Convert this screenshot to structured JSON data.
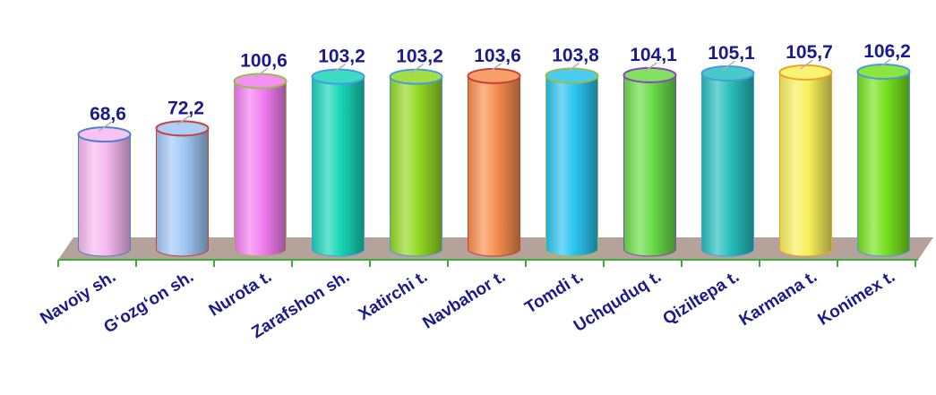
{
  "chart_data": {
    "type": "bar",
    "style": "3d-cylinder",
    "categories": [
      "Navoiy sh.",
      "G‘ozg‘on sh.",
      "Nurota t.",
      "Zarafshon sh.",
      "Xatirchi t.",
      "Navbahor t.",
      "Tomdi t.",
      "Uchquduq t.",
      "Qiziltepa t.",
      "Karmana t.",
      "Konimex t."
    ],
    "values": [
      68.6,
      72.2,
      100.6,
      103.2,
      103.2,
      103.6,
      103.8,
      104.1,
      105.1,
      105.7,
      106.2
    ],
    "value_labels": [
      "68,6",
      "72,2",
      "100,6",
      "103,2",
      "103,2",
      "103,6",
      "103,8",
      "104,1",
      "105,1",
      "105,7",
      "106,2"
    ],
    "title": "",
    "xlabel": "",
    "ylabel": "",
    "ylim": [
      0,
      110
    ],
    "grid": false,
    "legend": "none",
    "bar_colors": [
      "#f7b8f0",
      "#9fc7f5",
      "#f27df0",
      "#17d6b8",
      "#93d923",
      "#f78e4e",
      "#2ac4f0",
      "#69dc48",
      "#26bfbd",
      "#f7f05d",
      "#77e01d"
    ],
    "rim_colors": [
      "#4f7fd1",
      "#c6423a",
      "#9bbb4d",
      "#4a9ae0",
      "#4a9ae0",
      "#c6423a",
      "#9bbb4d",
      "#8a48b5",
      "#4a9ae0",
      "#f0a21e",
      "#4a9ae0"
    ],
    "label_color": "#1a1a8c",
    "floor_color": "#b5a29a",
    "axis_color": "#3aae3a"
  }
}
